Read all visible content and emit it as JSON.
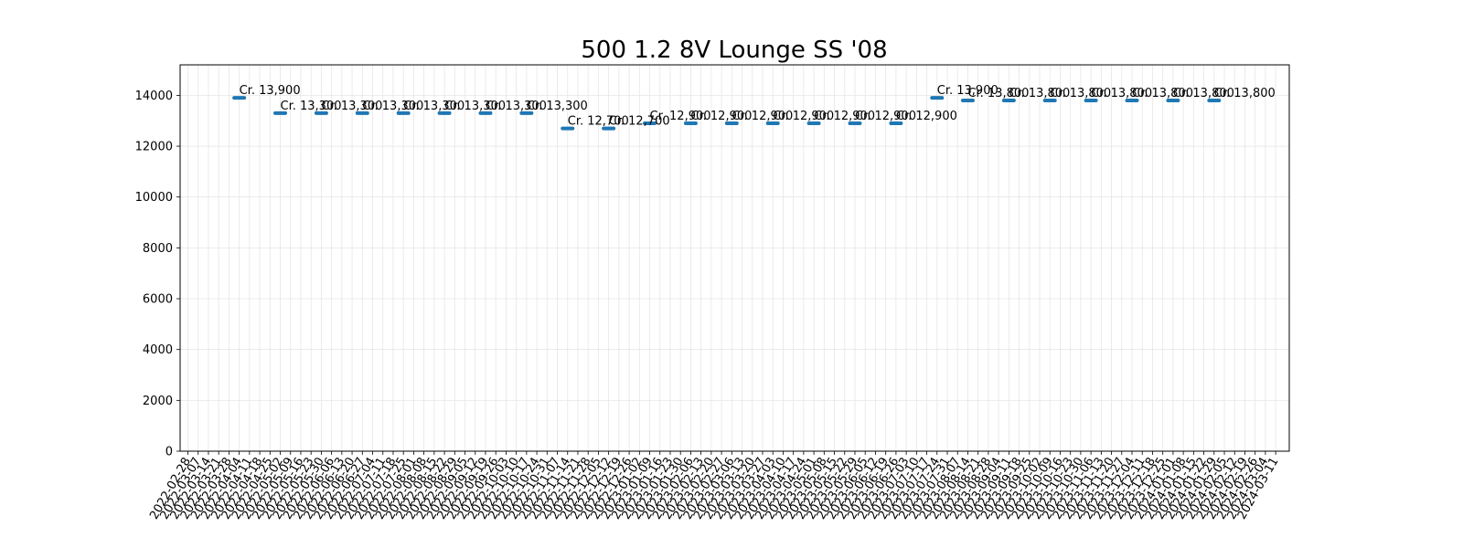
{
  "chart_data": {
    "type": "scatter",
    "title": "500 1.2 8V Lounge SS '08",
    "xlabel": "",
    "ylabel": "",
    "ylim": [
      0,
      15200
    ],
    "yticks": [
      0,
      2000,
      4000,
      6000,
      8000,
      10000,
      12000,
      14000
    ],
    "grid": true,
    "marker_color": "#1f77b4",
    "categories": [
      "2022-02-28",
      "2022-03-07",
      "2022-03-14",
      "2022-03-21",
      "2022-03-28",
      "2022-04-04",
      "2022-04-11",
      "2022-04-18",
      "2022-04-25",
      "2022-05-02",
      "2022-05-09",
      "2022-05-16",
      "2022-05-23",
      "2022-05-30",
      "2022-06-06",
      "2022-06-13",
      "2022-06-20",
      "2022-06-27",
      "2022-07-04",
      "2022-07-11",
      "2022-07-18",
      "2022-07-25",
      "2022-08-01",
      "2022-08-08",
      "2022-08-15",
      "2022-08-22",
      "2022-08-29",
      "2022-09-05",
      "2022-09-12",
      "2022-09-19",
      "2022-09-26",
      "2022-10-03",
      "2022-10-10",
      "2022-10-17",
      "2022-10-24",
      "2022-10-31",
      "2022-11-07",
      "2022-11-14",
      "2022-11-21",
      "2022-11-28",
      "2022-12-05",
      "2022-12-12",
      "2022-12-19",
      "2022-12-26",
      "2023-01-02",
      "2023-01-09",
      "2023-01-16",
      "2023-01-23",
      "2023-01-30",
      "2023-02-06",
      "2023-02-13",
      "2023-02-20",
      "2023-02-27",
      "2023-03-06",
      "2023-03-13",
      "2023-03-20",
      "2023-03-27",
      "2023-04-03",
      "2023-04-10",
      "2023-04-17",
      "2023-04-24",
      "2023-05-01",
      "2023-05-08",
      "2023-05-15",
      "2023-05-22",
      "2023-05-29",
      "2023-06-05",
      "2023-06-12",
      "2023-06-19",
      "2023-06-26",
      "2023-07-03",
      "2023-07-10",
      "2023-07-17",
      "2023-07-24",
      "2023-07-31",
      "2023-08-07",
      "2023-08-14",
      "2023-08-21",
      "2023-08-28",
      "2023-09-04",
      "2023-09-11",
      "2023-09-18",
      "2023-09-25",
      "2023-10-02",
      "2023-10-09",
      "2023-10-16",
      "2023-10-23",
      "2023-10-30",
      "2023-11-06",
      "2023-11-13",
      "2023-11-20",
      "2023-11-27",
      "2023-12-04",
      "2023-12-11",
      "2023-12-18",
      "2023-12-25",
      "2024-01-01",
      "2024-01-08",
      "2024-01-15",
      "2024-01-22",
      "2024-01-29",
      "2024-02-05",
      "2024-02-12",
      "2024-02-19",
      "2024-02-26",
      "2024-03-04",
      "2024-03-11"
    ],
    "xtick_labels": [
      "2022-02-28",
      "2022-03-07",
      "2022-03-14",
      "2022-03-21",
      "2022-03-28",
      "2022-04-04",
      "2022-04-11",
      "2022-04-18",
      "2022-04-25",
      "2022-05-02",
      "2022-05-09",
      "2022-05-16",
      "2022-05-23",
      "2022-05-30",
      "2022-06-06",
      "2022-06-13",
      "2022-06-20",
      "2022-06-27",
      "2022-07-04",
      "2022-07-11",
      "2022-07-18",
      "2022-07-25",
      "2022-08-01",
      "2022-08-08",
      "2022-08-15",
      "2022-08-22",
      "2022-08-29",
      "2022-09-05",
      "2022-09-12",
      "2022-09-19",
      "2022-09-26",
      "2022-10-03",
      "2022-10-10",
      "2022-10-17",
      "2022-10-24",
      "2022-10-31",
      "2022-11-07",
      "2022-11-14",
      "2022-11-21",
      "2022-11-28",
      "2022-12-05",
      "2022-12-12",
      "2022-12-19",
      "2022-12-26",
      "2023-01-02",
      "2023-01-09",
      "2023-01-16",
      "2023-01-23",
      "2023-01-30",
      "2023-02-06",
      "2023-02-13",
      "2023-02-20",
      "2023-02-27",
      "2023-03-06",
      "2023-03-13",
      "2023-03-20",
      "2023-03-27",
      "2023-04-03",
      "2023-04-10",
      "2023-04-17",
      "2023-04-24",
      "2023-05-01",
      "2023-05-08",
      "2023-05-15",
      "2023-05-22",
      "2023-05-29",
      "2023-06-05",
      "2023-06-12",
      "2023-06-19",
      "2023-06-26",
      "2023-07-03",
      "2023-07-10",
      "2023-07-17",
      "2023-07-24",
      "2023-07-31",
      "2023-08-07",
      "2023-08-14",
      "2023-08-21",
      "2023-08-28",
      "2023-09-04",
      "2023-09-11",
      "2023-09-18",
      "2023-09-25",
      "2023-10-02",
      "2023-10-09",
      "2023-10-16",
      "2023-10-23",
      "2023-10-30",
      "2023-11-06",
      "2023-11-13",
      "2023-11-20",
      "2023-11-27",
      "2023-12-04",
      "2023-12-11",
      "2023-12-18",
      "2023-12-25",
      "2024-01-01",
      "2024-01-08",
      "2024-01-15",
      "2024-01-22",
      "2024-01-29",
      "2024-02-05",
      "2024-02-12",
      "2024-02-19",
      "2024-02-26",
      "2024-03-04",
      "2024-03-11"
    ],
    "points": [
      {
        "x": "2022-04-04",
        "y": 13900,
        "label": "Cr. 13,900"
      },
      {
        "x": "2022-05-02",
        "y": 13300,
        "label": "Cr. 13,300"
      },
      {
        "x": "2022-05-30",
        "y": 13300,
        "label": "Cr. 13,300"
      },
      {
        "x": "2022-06-27",
        "y": 13300,
        "label": "Cr. 13,300"
      },
      {
        "x": "2022-07-25",
        "y": 13300,
        "label": "Cr. 13,300"
      },
      {
        "x": "2022-08-22",
        "y": 13300,
        "label": "Cr. 13,300"
      },
      {
        "x": "2022-09-19",
        "y": 13300,
        "label": "Cr. 13,300"
      },
      {
        "x": "2022-10-17",
        "y": 13300,
        "label": "Cr. 13,300"
      },
      {
        "x": "2022-11-14",
        "y": 12700,
        "label": "Cr. 12,700"
      },
      {
        "x": "2022-12-12",
        "y": 12700,
        "label": "Cr. 12,700"
      },
      {
        "x": "2023-01-09",
        "y": 12900,
        "label": "Cr. 12,900"
      },
      {
        "x": "2023-02-06",
        "y": 12900,
        "label": "Cr. 12,900"
      },
      {
        "x": "2023-03-06",
        "y": 12900,
        "label": "Cr. 12,900"
      },
      {
        "x": "2023-04-03",
        "y": 12900,
        "label": "Cr. 12,900"
      },
      {
        "x": "2023-05-01",
        "y": 12900,
        "label": "Cr. 12,900"
      },
      {
        "x": "2023-05-29",
        "y": 12900,
        "label": "Cr. 12,900"
      },
      {
        "x": "2023-06-26",
        "y": 12900,
        "label": "Cr. 12,900"
      },
      {
        "x": "2023-07-24",
        "y": 13900,
        "label": "Cr. 13,900"
      },
      {
        "x": "2023-08-14",
        "y": 13800,
        "label": "Cr. 13,800"
      },
      {
        "x": "2023-09-11",
        "y": 13800,
        "label": "Cr. 13,800"
      },
      {
        "x": "2023-10-09",
        "y": 13800,
        "label": "Cr. 13,800"
      },
      {
        "x": "2023-11-06",
        "y": 13800,
        "label": "Cr. 13,800"
      },
      {
        "x": "2023-12-04",
        "y": 13800,
        "label": "Cr. 13,800"
      },
      {
        "x": "2024-01-01",
        "y": 13800,
        "label": "Cr. 13,800"
      },
      {
        "x": "2024-01-29",
        "y": 13800,
        "label": "Cr. 13,800"
      }
    ]
  }
}
